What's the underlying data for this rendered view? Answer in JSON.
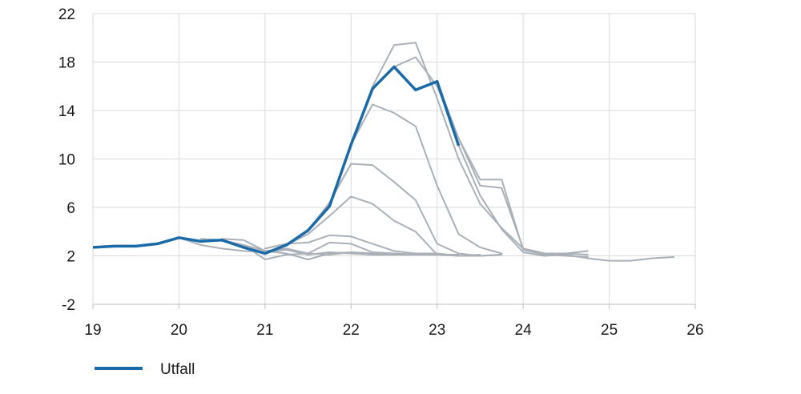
{
  "chart_data": {
    "type": "line",
    "title": "",
    "xlabel": "",
    "ylabel": "",
    "xlim": [
      19,
      26
    ],
    "ylim": [
      -2,
      22
    ],
    "x_ticks": [
      "19",
      "20",
      "21",
      "22",
      "23",
      "24",
      "25",
      "26"
    ],
    "y_ticks": [
      "-2",
      "2",
      "6",
      "10",
      "14",
      "18",
      "22"
    ],
    "grid": true,
    "legend_position": "bottom-left",
    "highlight": {
      "name": "Utfall",
      "color": "#1b6aa8",
      "points": [
        [
          19.0,
          2.7
        ],
        [
          19.25,
          2.8
        ],
        [
          19.5,
          2.8
        ],
        [
          19.75,
          3.0
        ],
        [
          20.0,
          3.5
        ],
        [
          20.25,
          3.2
        ],
        [
          20.5,
          3.3
        ],
        [
          20.75,
          2.7
        ],
        [
          21.0,
          2.2
        ],
        [
          21.25,
          2.9
        ],
        [
          21.5,
          4.1
        ],
        [
          21.75,
          6.1
        ],
        [
          22.0,
          11.2
        ],
        [
          22.25,
          15.8
        ],
        [
          22.5,
          17.6
        ],
        [
          22.75,
          15.7
        ],
        [
          23.0,
          16.4
        ],
        [
          23.25,
          11.1
        ]
      ]
    },
    "forecast_color": "#aab0b7",
    "forecasts": [
      {
        "points": [
          [
            20.0,
            3.5
          ],
          [
            20.25,
            2.9
          ],
          [
            20.5,
            2.6
          ],
          [
            20.75,
            2.4
          ],
          [
            21.0,
            2.3
          ],
          [
            21.25,
            2.5
          ],
          [
            21.5,
            2.1
          ],
          [
            21.75,
            2.3
          ],
          [
            22.0,
            2.2
          ],
          [
            22.25,
            2.1
          ],
          [
            22.5,
            2.1
          ],
          [
            22.75,
            2.1
          ]
        ]
      },
      {
        "points": [
          [
            20.25,
            3.4
          ],
          [
            20.5,
            3.3
          ],
          [
            20.75,
            2.9
          ],
          [
            21.0,
            2.4
          ],
          [
            21.25,
            2.6
          ],
          [
            21.5,
            2.2
          ],
          [
            21.75,
            2.1
          ],
          [
            22.0,
            2.3
          ],
          [
            22.25,
            2.2
          ],
          [
            22.5,
            2.2
          ],
          [
            22.75,
            2.1
          ]
        ]
      },
      {
        "points": [
          [
            20.5,
            3.4
          ],
          [
            20.75,
            3.3
          ],
          [
            21.0,
            2.4
          ],
          [
            21.25,
            2.2
          ],
          [
            21.5,
            1.7
          ],
          [
            21.75,
            2.2
          ],
          [
            22.0,
            2.3
          ],
          [
            22.25,
            2.2
          ],
          [
            22.5,
            2.2
          ],
          [
            22.75,
            2.1
          ],
          [
            23.0,
            2.1
          ]
        ]
      },
      {
        "points": [
          [
            20.75,
            2.9
          ],
          [
            21.0,
            1.7
          ],
          [
            21.25,
            2.1
          ],
          [
            21.5,
            2.2
          ],
          [
            21.75,
            3.1
          ],
          [
            22.0,
            3.0
          ],
          [
            22.25,
            2.3
          ],
          [
            22.5,
            2.2
          ],
          [
            22.75,
            2.1
          ],
          [
            23.0,
            2.1
          ],
          [
            23.25,
            2.1
          ]
        ]
      },
      {
        "points": [
          [
            21.0,
            2.6
          ],
          [
            21.25,
            3.0
          ],
          [
            21.5,
            3.1
          ],
          [
            21.75,
            3.7
          ],
          [
            22.0,
            3.6
          ],
          [
            22.25,
            3.0
          ],
          [
            22.5,
            2.4
          ],
          [
            22.75,
            2.2
          ],
          [
            23.0,
            2.2
          ],
          [
            23.25,
            2.0
          ],
          [
            23.5,
            2.1
          ]
        ]
      },
      {
        "points": [
          [
            21.25,
            2.9
          ],
          [
            21.5,
            3.8
          ],
          [
            21.75,
            5.3
          ],
          [
            22.0,
            6.9
          ],
          [
            22.25,
            6.3
          ],
          [
            22.5,
            4.9
          ],
          [
            22.75,
            4.0
          ],
          [
            23.0,
            2.1
          ],
          [
            23.25,
            2.0
          ],
          [
            23.5,
            2.0
          ],
          [
            23.75,
            2.1
          ]
        ]
      },
      {
        "points": [
          [
            21.5,
            4.1
          ],
          [
            21.75,
            6.4
          ],
          [
            22.0,
            9.6
          ],
          [
            22.25,
            9.5
          ],
          [
            22.5,
            8.1
          ],
          [
            22.75,
            6.6
          ],
          [
            23.0,
            3.0
          ],
          [
            23.25,
            2.2
          ],
          [
            23.5,
            2.0
          ],
          [
            23.75,
            2.1
          ]
        ]
      },
      {
        "points": [
          [
            21.75,
            6.1
          ],
          [
            22.0,
            11.2
          ],
          [
            22.25,
            14.5
          ],
          [
            22.5,
            13.8
          ],
          [
            22.75,
            12.7
          ],
          [
            23.0,
            7.8
          ],
          [
            23.25,
            3.8
          ],
          [
            23.5,
            2.7
          ],
          [
            23.75,
            2.2
          ]
        ]
      },
      {
        "points": [
          [
            22.0,
            11.2
          ],
          [
            22.25,
            16.0
          ],
          [
            22.5,
            19.4
          ],
          [
            22.75,
            19.6
          ],
          [
            23.0,
            15.0
          ],
          [
            23.25,
            10.0
          ],
          [
            23.5,
            6.3
          ],
          [
            23.75,
            4.3
          ],
          [
            24.0,
            2.6
          ],
          [
            24.25,
            2.2
          ],
          [
            24.5,
            2.2
          ],
          [
            24.75,
            2.4
          ]
        ]
      },
      {
        "points": [
          [
            22.25,
            15.8
          ],
          [
            22.5,
            17.6
          ],
          [
            22.75,
            18.4
          ],
          [
            23.0,
            16.0
          ],
          [
            23.25,
            11.7
          ],
          [
            23.5,
            7.8
          ],
          [
            23.75,
            7.6
          ],
          [
            24.0,
            2.6
          ],
          [
            24.25,
            2.2
          ],
          [
            24.5,
            2.2
          ],
          [
            24.75,
            2.1
          ]
        ]
      },
      {
        "points": [
          [
            22.75,
            15.7
          ],
          [
            23.0,
            16.4
          ],
          [
            23.25,
            11.7
          ],
          [
            23.5,
            8.3
          ],
          [
            23.75,
            8.3
          ],
          [
            24.0,
            2.5
          ],
          [
            24.25,
            2.1
          ],
          [
            24.5,
            2.0
          ],
          [
            24.75,
            1.9
          ]
        ]
      },
      {
        "points": [
          [
            23.0,
            16.4
          ],
          [
            23.25,
            11.1
          ],
          [
            23.5,
            7.0
          ],
          [
            23.75,
            4.2
          ],
          [
            24.0,
            2.3
          ],
          [
            24.25,
            2.0
          ],
          [
            24.5,
            2.1
          ],
          [
            24.75,
            1.8
          ],
          [
            25.0,
            1.6
          ],
          [
            25.25,
            1.6
          ],
          [
            25.5,
            1.8
          ],
          [
            25.75,
            1.9
          ]
        ]
      }
    ]
  }
}
